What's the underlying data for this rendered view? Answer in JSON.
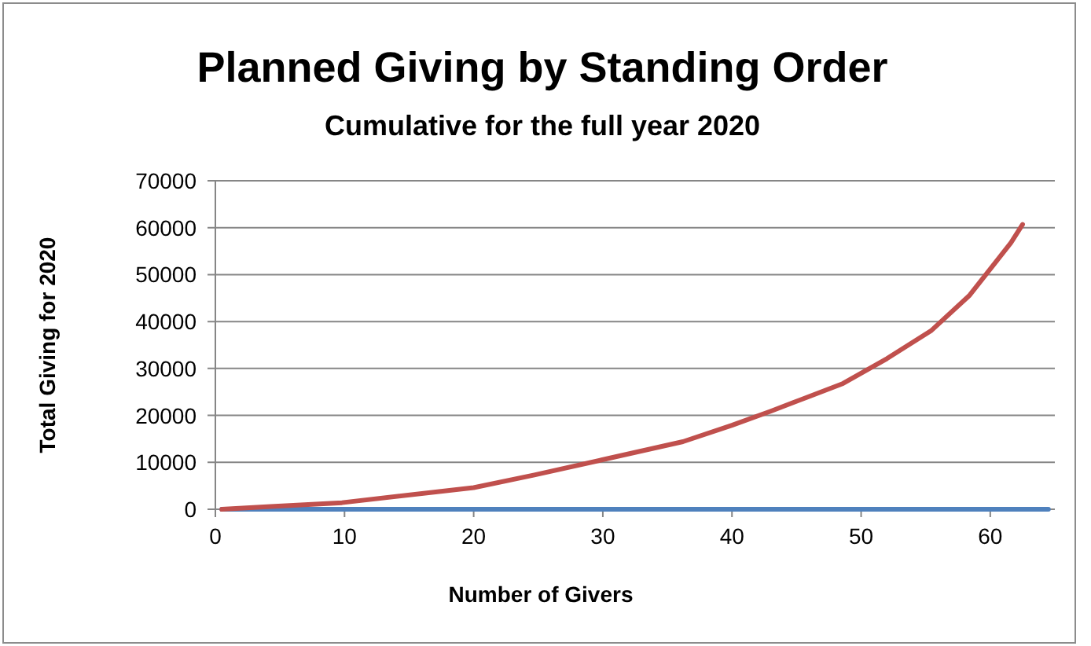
{
  "chart_data": {
    "type": "line",
    "title": "Planned Giving by Standing Order",
    "subtitle": "Cumulative for the full year 2020",
    "xlabel": "Number of Givers",
    "ylabel": "Total Giving for 2020",
    "xlim": [
      0,
      65
    ],
    "xticks": [
      0,
      10,
      20,
      30,
      40,
      50,
      60
    ],
    "ylim": [
      0,
      70000
    ],
    "yticks": [
      0,
      10000,
      20000,
      30000,
      40000,
      50000,
      60000,
      70000
    ],
    "grid": "y",
    "marker": "none",
    "line_style": "solid",
    "series": [
      {
        "color": "#4f81bd",
        "x": [
          0.5,
          64.5
        ],
        "values": [
          0,
          0
        ]
      },
      {
        "color": "#c0504d",
        "x": [
          0.5,
          4.3,
          9.8,
          20,
          24.7,
          29.9,
          36.2,
          40,
          43,
          48.6,
          52,
          55.4,
          58.4,
          61.6,
          62.5
        ],
        "values": [
          0,
          600,
          1400,
          4600,
          7300,
          10500,
          14400,
          17900,
          20900,
          26800,
          32100,
          38000,
          45600,
          56800,
          60700
        ]
      }
    ]
  }
}
